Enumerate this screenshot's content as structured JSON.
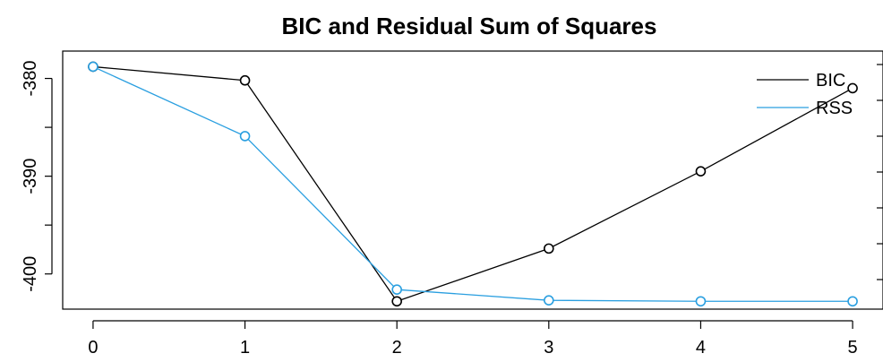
{
  "chart_data": {
    "type": "line",
    "title": "BIC and Residual Sum of Squares",
    "xlabel": "",
    "ylabel": "",
    "x": [
      0,
      1,
      2,
      3,
      4,
      5
    ],
    "x_ticks": [
      "0",
      "1",
      "2",
      "3",
      "4",
      "5"
    ],
    "y_ticks": [
      "-380",
      "-390",
      "-400"
    ],
    "y_tick_values": [
      -380,
      -390,
      -400
    ],
    "xlim": [
      -0.2,
      5.2
    ],
    "ylim": [
      -403.6,
      -377.2
    ],
    "series": [
      {
        "name": "BIC",
        "color": "#000000",
        "values": [
          -378.8,
          -380.2,
          -402.8,
          -397.4,
          -389.5,
          -381.0
        ]
      },
      {
        "name": "RSS",
        "color": "#2a9fe0",
        "values": [
          -378.8,
          -385.9,
          -401.6,
          -402.7,
          -402.8,
          -402.8
        ]
      }
    ],
    "secondary_axis": {
      "side": "right",
      "tick_count": 7,
      "labels": []
    },
    "legend": {
      "position": "top-right",
      "items": [
        "BIC",
        "RSS"
      ]
    },
    "grid": false
  }
}
